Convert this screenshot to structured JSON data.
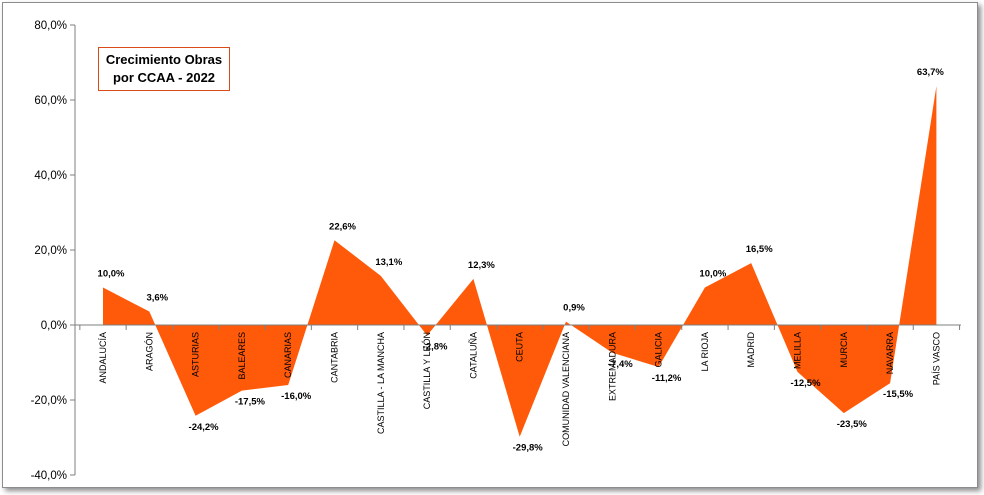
{
  "chart_data": {
    "type": "area",
    "title_lines": [
      "Crecimiento Obras",
      "por CCAA - 2022"
    ],
    "categories": [
      "ANDALUCÍA",
      "ARAGÓN",
      "ASTURIAS",
      "BALEARES",
      "CANARIAS",
      "CANTABRIA",
      "CASTILLA - LA MANCHA",
      "CASTILLA Y LEÓN",
      "CATALUÑA",
      "CEUTA",
      "COMUNIDAD VALENCIANA",
      "EXTREMADURA",
      "GALICIA",
      "LA RIOJA",
      "MADRID",
      "MELILLA",
      "MURCIA",
      "NAVARRA",
      "PAÍS VASCO"
    ],
    "values": [
      10.0,
      3.6,
      -24.2,
      -17.5,
      -16.0,
      22.6,
      13.1,
      -2.8,
      12.3,
      -29.8,
      0.9,
      -7.4,
      -11.2,
      10.0,
      16.5,
      -12.5,
      -23.5,
      -15.5,
      63.7
    ],
    "value_labels": [
      "10,0%",
      "3,6%",
      "-24,2%",
      "-17,5%",
      "-16,0%",
      "22,6%",
      "13,1%",
      "-2,8%",
      "12,3%",
      "-29,8%",
      "0,9%",
      "-7,4%",
      "-11,2%",
      "10,0%",
      "16,5%",
      "-12,5%",
      "-23,5%",
      "-15,5%",
      "63,7%"
    ],
    "ylim": [
      -40,
      80
    ],
    "yticks": [
      80,
      60,
      40,
      20,
      0,
      -20,
      -40
    ],
    "ytick_labels": [
      "80,0%",
      "60,0%",
      "40,0%",
      "20,0%",
      "0,0%",
      "-20,0%",
      "-40,0%"
    ],
    "fill_color": "#ff5a0a",
    "title_border_color": "#d94b1a",
    "grid": false,
    "legend": "none"
  }
}
